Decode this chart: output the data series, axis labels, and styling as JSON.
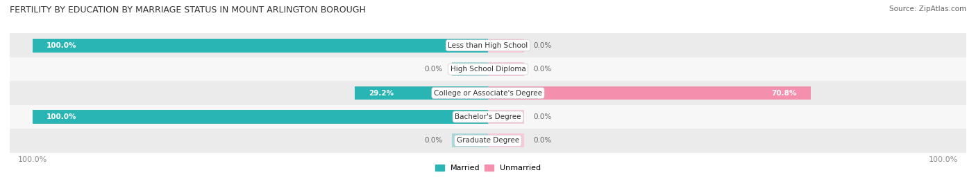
{
  "title": "FERTILITY BY EDUCATION BY MARRIAGE STATUS IN MOUNT ARLINGTON BOROUGH",
  "source": "Source: ZipAtlas.com",
  "categories": [
    "Less than High School",
    "High School Diploma",
    "College or Associate's Degree",
    "Bachelor's Degree",
    "Graduate Degree"
  ],
  "married": [
    100.0,
    0.0,
    29.2,
    100.0,
    0.0
  ],
  "unmarried": [
    0.0,
    0.0,
    70.8,
    0.0,
    0.0
  ],
  "married_color": "#2ab5b5",
  "unmarried_color": "#f48fad",
  "married_light_color": "#a8d8d8",
  "unmarried_light_color": "#f9c8d8",
  "row_bg_colors": [
    "#ebebeb",
    "#f7f7f7"
  ],
  "label_color": "#666666",
  "title_color": "#333333",
  "axis_label_color": "#888888",
  "figsize": [
    14.06,
    2.69
  ],
  "dpi": 100
}
